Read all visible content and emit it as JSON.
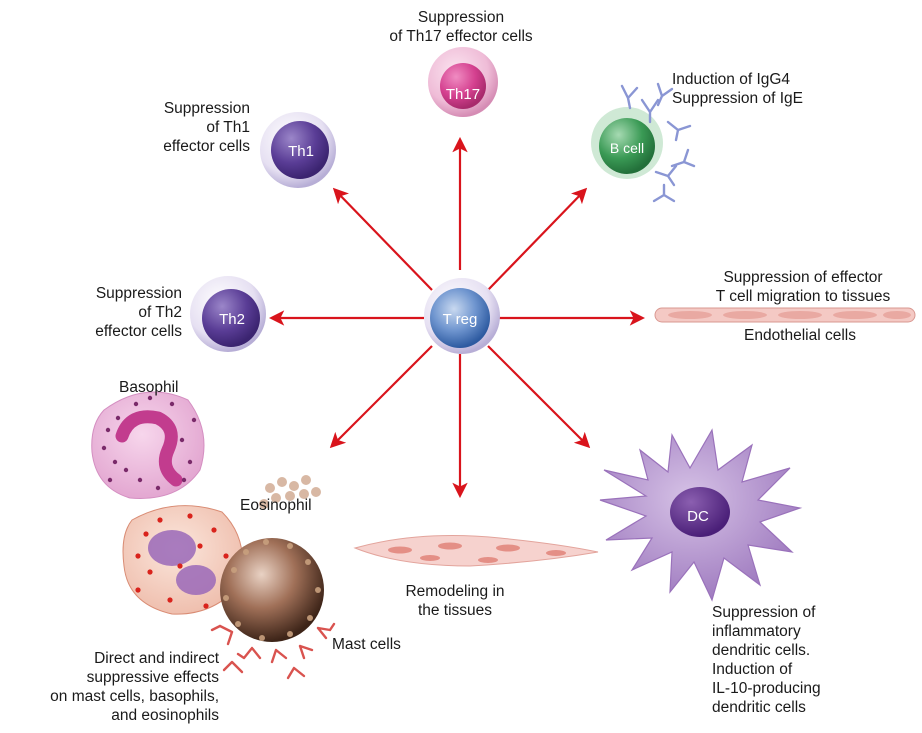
{
  "center": {
    "label": "T reg"
  },
  "cells": {
    "th17": "Th17",
    "th1": "Th1",
    "th2": "Th2",
    "bcell": "B cell",
    "dc": "DC"
  },
  "labels": {
    "th17": [
      "Suppression",
      "of Th17 effector cells"
    ],
    "th1": [
      "Suppression",
      "of Th1",
      "effector cells"
    ],
    "th2": [
      "Suppression",
      "of Th2",
      "effector cells"
    ],
    "bcell": [
      "Induction of IgG4",
      "Suppression of IgE"
    ],
    "tcell_migration": [
      "Suppression of effector",
      "T cell migration to tissues"
    ],
    "endothelial": "Endothelial cells",
    "basophil": "Basophil",
    "eosinophil": "Eosinophil",
    "mast_cells": "Mast cells",
    "remodeling": [
      "Remodeling in",
      "the tissues"
    ],
    "dc": [
      "Suppression of",
      "inflammatory",
      "dendritic cells.",
      "Induction of",
      "IL-10-producing",
      "dendritic cells"
    ],
    "granulocytes": [
      "Direct and indirect",
      "suppressive effects",
      "on mast cells, basophils,",
      "and eosinophils"
    ]
  },
  "colors": {
    "arrow": "#d9141c",
    "treg": "#3f6fb5",
    "th17": "#d4408f",
    "th1": "#5a3d96",
    "th2": "#5a3d96",
    "bcell": "#3a9a55",
    "dc": "#a87fc4",
    "antibody": "#8a96d4",
    "ige": "#d9534f"
  }
}
